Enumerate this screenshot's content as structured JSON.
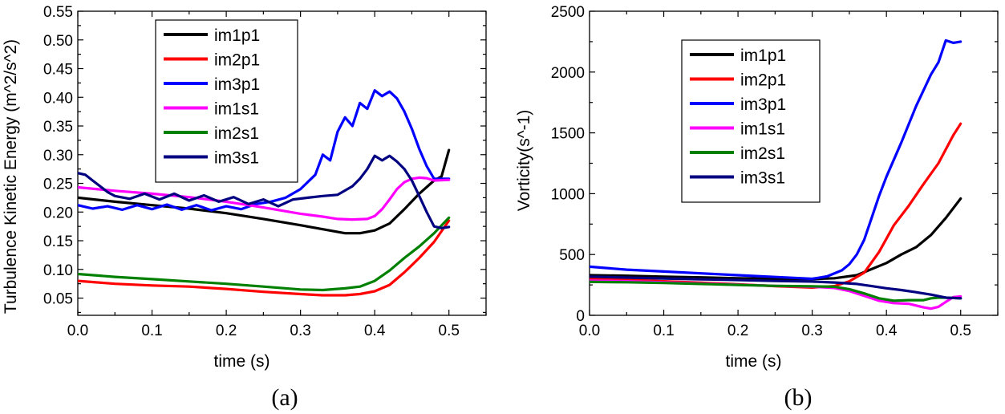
{
  "chart_data": [
    {
      "type": "line",
      "panel_label": "(a)",
      "xlabel": "time (s)",
      "ylabel": "Turbulence Kinetic Energy (m^2/s^2)",
      "xlim": [
        0,
        0.55
      ],
      "ylim": [
        0.02,
        0.55
      ],
      "xticks": [
        0.0,
        0.1,
        0.2,
        0.3,
        0.4,
        0.5
      ],
      "xtick_labels": [
        "0.0",
        "0.1",
        "0.2",
        "0.3",
        "0.4",
        "0.5"
      ],
      "yticks": [
        0.05,
        0.1,
        0.15,
        0.2,
        0.25,
        0.3,
        0.35,
        0.4,
        0.45,
        0.5,
        0.55
      ],
      "ytick_labels": [
        "0.05",
        "0.10",
        "0.15",
        "0.20",
        "0.25",
        "0.30",
        "0.35",
        "0.40",
        "0.45",
        "0.50",
        "0.55"
      ],
      "legend_position": "top-center",
      "series": [
        {
          "name": "im1p1",
          "color": "#000000",
          "x": [
            0.0,
            0.05,
            0.1,
            0.15,
            0.2,
            0.25,
            0.3,
            0.33,
            0.36,
            0.38,
            0.4,
            0.42,
            0.44,
            0.46,
            0.48,
            0.49,
            0.5
          ],
          "y": [
            0.225,
            0.218,
            0.212,
            0.206,
            0.198,
            0.188,
            0.177,
            0.17,
            0.163,
            0.163,
            0.168,
            0.18,
            0.205,
            0.232,
            0.255,
            0.262,
            0.308
          ]
        },
        {
          "name": "im2p1",
          "color": "#ff0000",
          "x": [
            0.0,
            0.05,
            0.1,
            0.15,
            0.2,
            0.25,
            0.3,
            0.33,
            0.36,
            0.38,
            0.4,
            0.42,
            0.44,
            0.46,
            0.48,
            0.5
          ],
          "y": [
            0.08,
            0.075,
            0.072,
            0.07,
            0.066,
            0.061,
            0.057,
            0.055,
            0.055,
            0.057,
            0.062,
            0.073,
            0.095,
            0.12,
            0.148,
            0.185
          ]
        },
        {
          "name": "im3p1",
          "color": "#0000ff",
          "x": [
            0.0,
            0.02,
            0.04,
            0.06,
            0.08,
            0.1,
            0.12,
            0.14,
            0.16,
            0.18,
            0.2,
            0.22,
            0.24,
            0.26,
            0.28,
            0.3,
            0.32,
            0.33,
            0.34,
            0.35,
            0.36,
            0.37,
            0.38,
            0.39,
            0.4,
            0.41,
            0.42,
            0.43,
            0.44,
            0.45,
            0.46,
            0.47,
            0.48,
            0.49,
            0.5
          ],
          "y": [
            0.212,
            0.206,
            0.21,
            0.204,
            0.212,
            0.205,
            0.213,
            0.204,
            0.212,
            0.203,
            0.21,
            0.205,
            0.214,
            0.218,
            0.225,
            0.24,
            0.265,
            0.3,
            0.29,
            0.34,
            0.365,
            0.35,
            0.39,
            0.38,
            0.412,
            0.402,
            0.41,
            0.398,
            0.375,
            0.345,
            0.31,
            0.28,
            0.258,
            0.258,
            0.258
          ]
        },
        {
          "name": "im1s1",
          "color": "#ff00ff",
          "x": [
            0.0,
            0.05,
            0.1,
            0.15,
            0.2,
            0.25,
            0.3,
            0.33,
            0.35,
            0.37,
            0.39,
            0.4,
            0.41,
            0.42,
            0.43,
            0.44,
            0.45,
            0.46,
            0.47,
            0.48,
            0.5
          ],
          "y": [
            0.243,
            0.237,
            0.232,
            0.226,
            0.218,
            0.208,
            0.197,
            0.192,
            0.188,
            0.187,
            0.188,
            0.193,
            0.205,
            0.222,
            0.24,
            0.252,
            0.258,
            0.26,
            0.259,
            0.255,
            0.256
          ]
        },
        {
          "name": "im2s1",
          "color": "#008000",
          "x": [
            0.0,
            0.05,
            0.1,
            0.15,
            0.2,
            0.25,
            0.3,
            0.33,
            0.36,
            0.38,
            0.4,
            0.42,
            0.44,
            0.46,
            0.48,
            0.5
          ],
          "y": [
            0.092,
            0.087,
            0.083,
            0.079,
            0.075,
            0.07,
            0.065,
            0.064,
            0.067,
            0.07,
            0.08,
            0.098,
            0.12,
            0.14,
            0.163,
            0.19
          ]
        },
        {
          "name": "im3s1",
          "color": "#000080",
          "x": [
            0.0,
            0.01,
            0.02,
            0.03,
            0.04,
            0.05,
            0.07,
            0.09,
            0.11,
            0.13,
            0.15,
            0.17,
            0.19,
            0.21,
            0.23,
            0.25,
            0.27,
            0.29,
            0.31,
            0.33,
            0.35,
            0.37,
            0.38,
            0.39,
            0.4,
            0.41,
            0.42,
            0.43,
            0.44,
            0.45,
            0.46,
            0.47,
            0.48,
            0.49,
            0.5
          ],
          "y": [
            0.268,
            0.265,
            0.255,
            0.245,
            0.235,
            0.228,
            0.223,
            0.232,
            0.222,
            0.232,
            0.22,
            0.229,
            0.218,
            0.226,
            0.214,
            0.222,
            0.21,
            0.222,
            0.225,
            0.228,
            0.23,
            0.245,
            0.258,
            0.275,
            0.298,
            0.29,
            0.298,
            0.288,
            0.275,
            0.255,
            0.228,
            0.2,
            0.175,
            0.172,
            0.174
          ]
        }
      ]
    },
    {
      "type": "line",
      "panel_label": "(b)",
      "xlabel": "time (s)",
      "ylabel": "Vorticity(s^-1)",
      "xlim": [
        0,
        0.55
      ],
      "ylim": [
        0,
        2500
      ],
      "xticks": [
        0.0,
        0.1,
        0.2,
        0.3,
        0.4,
        0.5
      ],
      "xtick_labels": [
        "0.0",
        "0.1",
        "0.2",
        "0.3",
        "0.4",
        "0.5"
      ],
      "yticks": [
        0,
        500,
        1000,
        1500,
        2000,
        2500
      ],
      "ytick_labels": [
        "0",
        "500",
        "1000",
        "1500",
        "2000",
        "2500"
      ],
      "legend_position": "top-center",
      "series": [
        {
          "name": "im1p1",
          "color": "#000000",
          "x": [
            0.0,
            0.05,
            0.1,
            0.15,
            0.2,
            0.25,
            0.3,
            0.33,
            0.36,
            0.38,
            0.4,
            0.42,
            0.44,
            0.46,
            0.48,
            0.5
          ],
          "y": [
            330,
            325,
            318,
            312,
            305,
            300,
            298,
            305,
            330,
            380,
            430,
            500,
            560,
            660,
            800,
            960
          ]
        },
        {
          "name": "im2p1",
          "color": "#ff0000",
          "x": [
            0.0,
            0.05,
            0.1,
            0.15,
            0.2,
            0.25,
            0.3,
            0.33,
            0.35,
            0.37,
            0.39,
            0.41,
            0.43,
            0.45,
            0.47,
            0.49,
            0.5
          ],
          "y": [
            300,
            292,
            280,
            268,
            255,
            240,
            228,
            240,
            280,
            350,
            520,
            740,
            900,
            1080,
            1250,
            1480,
            1575
          ]
        },
        {
          "name": "im3p1",
          "color": "#0000ff",
          "x": [
            0.0,
            0.05,
            0.1,
            0.15,
            0.2,
            0.25,
            0.3,
            0.32,
            0.34,
            0.35,
            0.36,
            0.37,
            0.38,
            0.39,
            0.4,
            0.42,
            0.44,
            0.46,
            0.47,
            0.48,
            0.49,
            0.5
          ],
          "y": [
            400,
            375,
            360,
            345,
            330,
            315,
            300,
            320,
            370,
            420,
            500,
            620,
            800,
            980,
            1140,
            1420,
            1720,
            1980,
            2080,
            2260,
            2240,
            2250
          ]
        },
        {
          "name": "im1s1",
          "color": "#ff00ff",
          "x": [
            0.0,
            0.05,
            0.1,
            0.15,
            0.2,
            0.25,
            0.3,
            0.33,
            0.35,
            0.37,
            0.39,
            0.41,
            0.43,
            0.45,
            0.46,
            0.47,
            0.48,
            0.49,
            0.5
          ],
          "y": [
            285,
            280,
            272,
            262,
            252,
            242,
            235,
            225,
            200,
            160,
            120,
            100,
            95,
            65,
            55,
            70,
            110,
            150,
            155
          ]
        },
        {
          "name": "im2s1",
          "color": "#008000",
          "x": [
            0.0,
            0.05,
            0.1,
            0.15,
            0.2,
            0.25,
            0.3,
            0.33,
            0.35,
            0.37,
            0.39,
            0.41,
            0.43,
            0.45,
            0.46,
            0.47,
            0.48,
            0.5
          ],
          "y": [
            275,
            272,
            266,
            258,
            250,
            242,
            238,
            235,
            215,
            180,
            140,
            120,
            125,
            125,
            140,
            145,
            145,
            140
          ]
        },
        {
          "name": "im3s1",
          "color": "#000080",
          "x": [
            0.0,
            0.05,
            0.1,
            0.15,
            0.2,
            0.25,
            0.3,
            0.33,
            0.36,
            0.38,
            0.4,
            0.42,
            0.44,
            0.46,
            0.48,
            0.5
          ],
          "y": [
            318,
            310,
            303,
            296,
            290,
            282,
            278,
            270,
            258,
            240,
            222,
            208,
            190,
            170,
            145,
            140
          ]
        }
      ]
    }
  ]
}
